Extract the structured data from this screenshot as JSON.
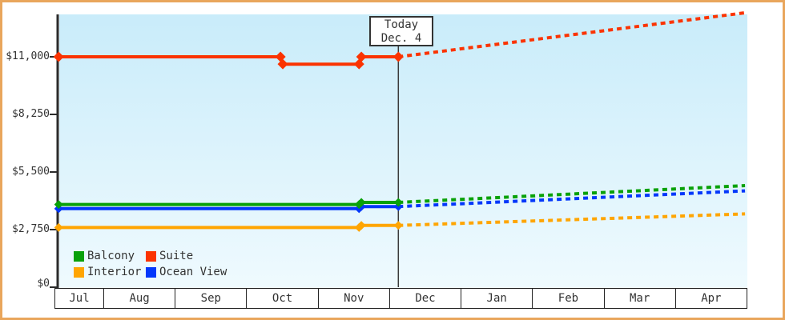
{
  "colors": {
    "frame_border": "#e9a65c",
    "plot_bg_top": "#c9ecfa",
    "plot_bg_bottom": "#effafe",
    "axis": "#2b2b2b",
    "balcony": "#09a109",
    "suite": "#fb3300",
    "interior": "#ffa502",
    "ocean_view": "#0337fb"
  },
  "chart_data": {
    "type": "line",
    "title": "",
    "y_ticks": {
      "labels": [
        "$11,000",
        "$8,250",
        "$5,500",
        "$2,750",
        "$0"
      ],
      "values": [
        11000,
        8250,
        5500,
        2750,
        0
      ]
    },
    "x_ticks": {
      "months": [
        "Jul",
        "Aug",
        "Sep",
        "Oct",
        "Nov",
        "Dec",
        "Jan",
        "Feb",
        "Mar",
        "Apr"
      ]
    },
    "ylim": [
      0,
      13000
    ],
    "grid": false,
    "legend_position": "bottom-left",
    "today_annotation": {
      "title": "Today",
      "date_label": "Dec. 4",
      "date": "Dec 4"
    },
    "legend": [
      {
        "label": "Balcony",
        "color": "#09a109"
      },
      {
        "label": "Suite",
        "color": "#fb3300"
      },
      {
        "label": "Interior",
        "color": "#ffa502"
      },
      {
        "label": "Ocean View",
        "color": "#0337fb"
      }
    ],
    "series": [
      {
        "name": "Interior",
        "color": "#ffa502",
        "solid_history": [
          [
            "Jul 12",
            2850
          ],
          [
            "Nov 18",
            2850
          ],
          [
            "Nov 19",
            2950
          ],
          [
            "Dec 4",
            2950
          ]
        ],
        "dashed_projection": [
          [
            "Dec 4",
            2950
          ],
          [
            "Apr 30",
            3500
          ]
        ]
      },
      {
        "name": "Ocean View",
        "color": "#0337fb",
        "solid_history": [
          [
            "Jul 12",
            3750
          ],
          [
            "Nov 18",
            3750
          ],
          [
            "Nov 19",
            3850
          ],
          [
            "Dec 4",
            3850
          ]
        ],
        "dashed_projection": [
          [
            "Dec 4",
            3850
          ],
          [
            "Apr 30",
            4600
          ]
        ]
      },
      {
        "name": "Balcony",
        "color": "#09a109",
        "solid_history": [
          [
            "Jul 12",
            3950
          ],
          [
            "Nov 18",
            3950
          ],
          [
            "Nov 19",
            4050
          ],
          [
            "Dec 4",
            4050
          ]
        ],
        "dashed_projection": [
          [
            "Dec 4",
            4050
          ],
          [
            "Apr 30",
            4850
          ]
        ]
      },
      {
        "name": "Suite",
        "color": "#fb3300",
        "solid_history": [
          [
            "Jul 12",
            11000
          ],
          [
            "Oct 15",
            11000
          ],
          [
            "Oct 16",
            10650
          ],
          [
            "Nov 18",
            10650
          ],
          [
            "Nov 19",
            11000
          ],
          [
            "Dec 4",
            11000
          ]
        ],
        "dashed_projection": [
          [
            "Dec 4",
            11000
          ],
          [
            "Apr 30",
            13100
          ]
        ]
      }
    ]
  }
}
